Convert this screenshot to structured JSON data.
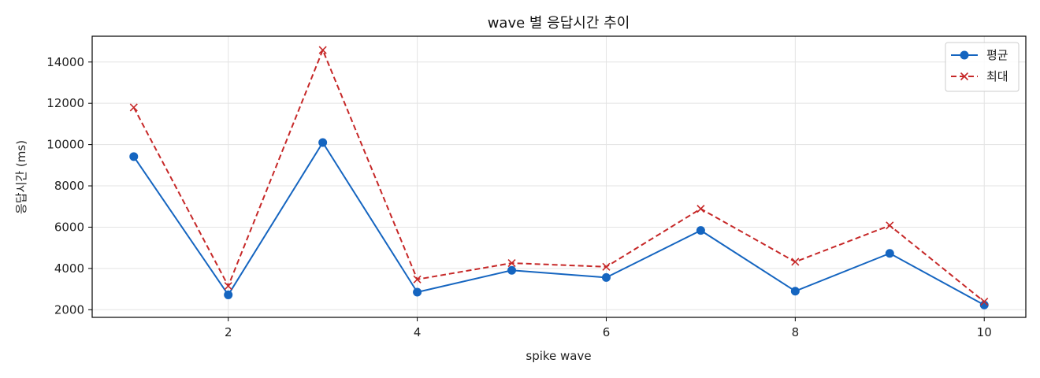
{
  "chart_data": {
    "type": "line",
    "title": "wave 별 응답시간 추이",
    "xlabel": "spike wave",
    "ylabel": "응답시간 (ms)",
    "x": [
      1,
      2,
      3,
      4,
      5,
      6,
      7,
      8,
      9,
      10
    ],
    "xticks": [
      2,
      4,
      6,
      8,
      10
    ],
    "yticks": [
      2000,
      4000,
      6000,
      8000,
      10000,
      12000,
      14000
    ],
    "xlim": [
      0.56,
      10.44
    ],
    "ylim": [
      1630,
      15250
    ],
    "grid": true,
    "legend_position": "top-right",
    "series": [
      {
        "name": "평균",
        "values": [
          9420,
          2720,
          10100,
          2850,
          3910,
          3560,
          5840,
          2900,
          4730,
          2230
        ],
        "color": "#1565c0",
        "line_style": "solid",
        "marker": "circle"
      },
      {
        "name": "최대",
        "values": [
          11800,
          3150,
          14580,
          3470,
          4260,
          4080,
          6890,
          4320,
          6080,
          2390
        ],
        "color": "#c62828",
        "line_style": "dashed",
        "marker": "x"
      }
    ]
  }
}
